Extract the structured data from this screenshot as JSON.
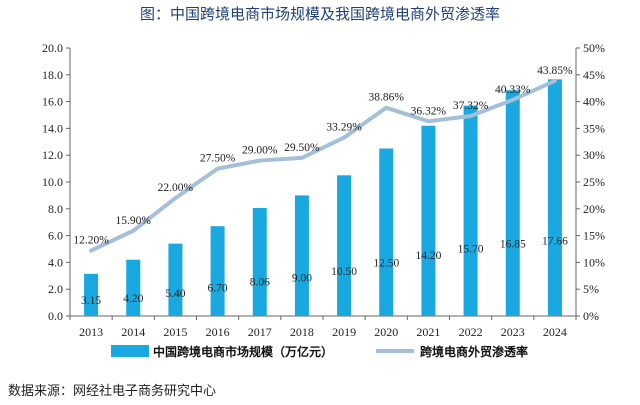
{
  "chart_data": {
    "type": "bar",
    "title": "图：中国跨境电商市场规模及我国跨境电商外贸渗透率",
    "categories": [
      "2013",
      "2014",
      "2015",
      "2016",
      "2017",
      "2018",
      "2019",
      "2020",
      "2021",
      "2022",
      "2023",
      "2024"
    ],
    "series": [
      {
        "name": "中国跨境电商市场规模（万亿元）",
        "type": "bar",
        "axis": "left",
        "color": "#19a9e0",
        "values": [
          3.15,
          4.2,
          5.4,
          6.7,
          8.06,
          9.0,
          10.5,
          12.5,
          14.2,
          15.7,
          16.85,
          17.66
        ],
        "labels": [
          "3.15",
          "4.20",
          "5.40",
          "6.70",
          "8.06",
          "9.00",
          "10.50",
          "12.50",
          "14.20",
          "15.70",
          "16.85",
          "17.66"
        ]
      },
      {
        "name": "跨境电商外贸渗透率",
        "type": "line",
        "axis": "right",
        "color": "#a3bfd9",
        "values": [
          12.2,
          15.9,
          22.0,
          27.5,
          29.0,
          29.5,
          33.29,
          38.86,
          36.32,
          37.32,
          40.33,
          43.85
        ],
        "labels": [
          "12.20%",
          "15.90%",
          "22.00%",
          "27.50%",
          "29.00%",
          "29.50%",
          "33.29%",
          "38.86%",
          "36.32%",
          "37.32%",
          "40.33%",
          "43.85%"
        ]
      }
    ],
    "y_left": {
      "min": 0,
      "max": 20,
      "step": 2,
      "ticks": [
        "0.0",
        "2.0",
        "4.0",
        "6.0",
        "8.0",
        "10.0",
        "12.0",
        "14.0",
        "16.0",
        "18.0",
        "20.0"
      ]
    },
    "y_right": {
      "min": 0,
      "max": 50,
      "step": 5,
      "ticks": [
        "0%",
        "5%",
        "10%",
        "15%",
        "20%",
        "25%",
        "30%",
        "35%",
        "40%",
        "45%",
        "50%"
      ]
    },
    "grid": false,
    "legend_position": "bottom"
  },
  "source": "数据来源：网经社电子商务研究中心"
}
